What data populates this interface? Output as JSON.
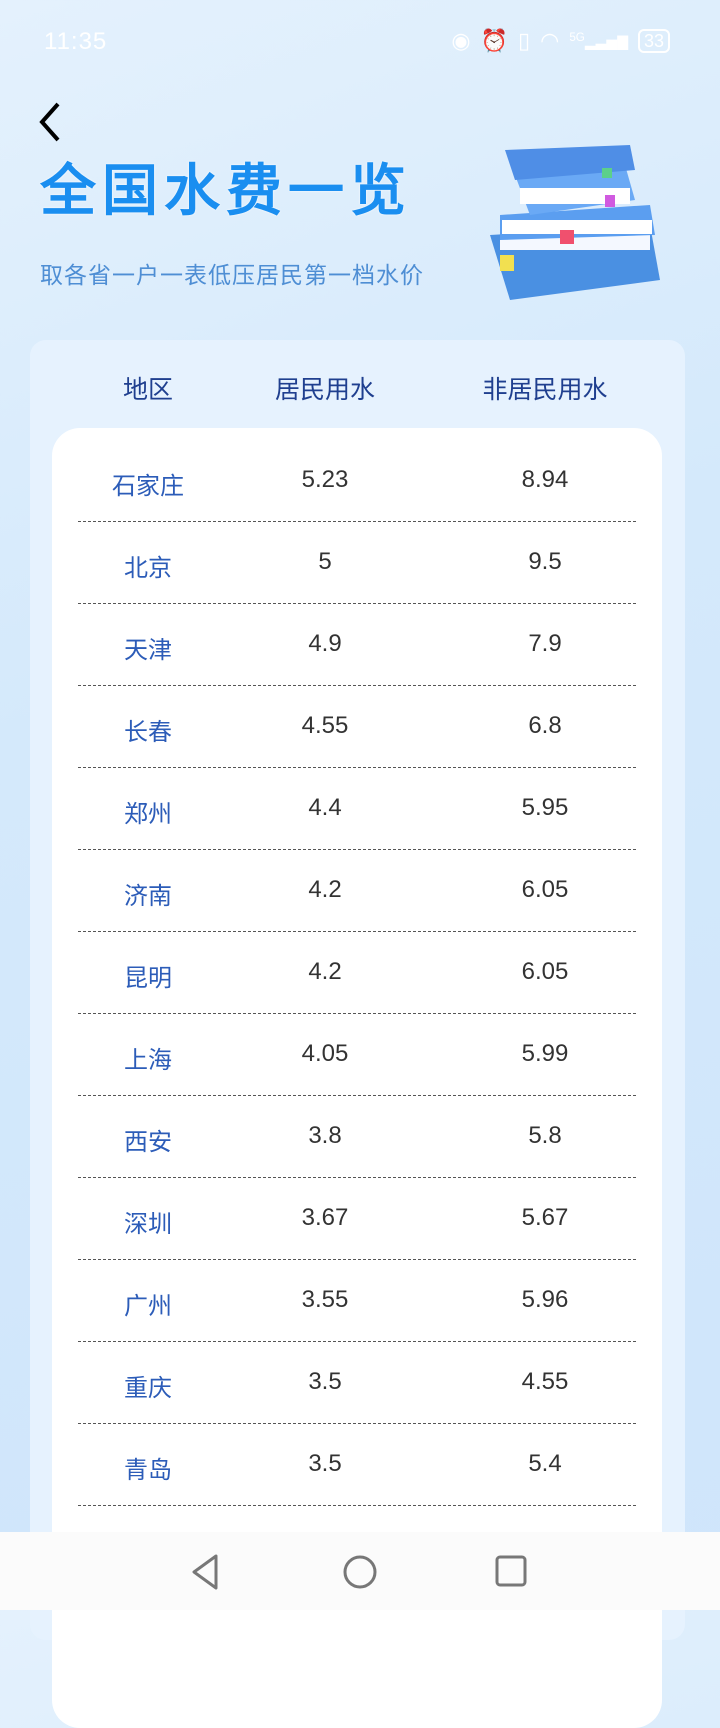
{
  "status_bar": {
    "time": "11:35",
    "battery": "33",
    "network": "5G",
    "icons": [
      "eye-icon",
      "alarm-icon",
      "vibrate-icon",
      "wifi-icon",
      "signal-icon",
      "battery-icon"
    ]
  },
  "header": {
    "title": "全国水费一览",
    "subtitle": "取各省一户一表低压居民第一档水价"
  },
  "table": {
    "columns": [
      "地区",
      "居民用水",
      "非居民用水"
    ],
    "rows": [
      [
        "石家庄",
        "5.23",
        "8.94"
      ],
      [
        "北京",
        "5",
        "9.5"
      ],
      [
        "天津",
        "4.9",
        "7.9"
      ],
      [
        "长春",
        "4.55",
        "6.8"
      ],
      [
        "郑州",
        "4.4",
        "5.95"
      ],
      [
        "济南",
        "4.2",
        "6.05"
      ],
      [
        "昆明",
        "4.2",
        "6.05"
      ],
      [
        "上海",
        "4.05",
        "5.99"
      ],
      [
        "西安",
        "3.8",
        "5.8"
      ],
      [
        "深圳",
        "3.67",
        "5.67"
      ],
      [
        "广州",
        "3.55",
        "5.96"
      ],
      [
        "重庆",
        "3.5",
        "4.55"
      ],
      [
        "青岛",
        "3.5",
        "5.4"
      ]
    ]
  },
  "nav": {
    "icons": [
      "back-triangle-icon",
      "home-circle-icon",
      "recents-square-icon"
    ]
  }
}
